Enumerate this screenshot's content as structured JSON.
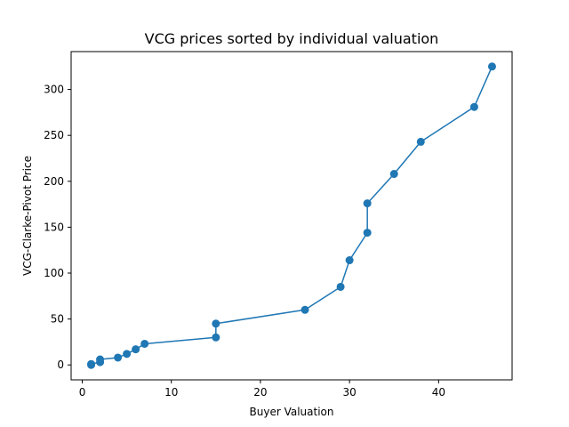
{
  "chart_data": {
    "type": "line",
    "title": "VCG prices sorted by individual valuation",
    "xlabel": "Buyer Valuation",
    "ylabel": "VCG-Clarke-Pivot Price",
    "xlim": [
      -1.25,
      48.25
    ],
    "ylim": [
      -16.25,
      341.25
    ],
    "xticks": [
      0,
      10,
      20,
      30,
      40
    ],
    "yticks": [
      0,
      50,
      100,
      150,
      200,
      250,
      300
    ],
    "grid": false,
    "color": "#1f77b4",
    "marker": "circle",
    "points": [
      {
        "x": 1,
        "y": 0
      },
      {
        "x": 1,
        "y": 1
      },
      {
        "x": 2,
        "y": 3
      },
      {
        "x": 2,
        "y": 6
      },
      {
        "x": 4,
        "y": 8
      },
      {
        "x": 5,
        "y": 12
      },
      {
        "x": 6,
        "y": 17
      },
      {
        "x": 7,
        "y": 23
      },
      {
        "x": 15,
        "y": 30
      },
      {
        "x": 15,
        "y": 45
      },
      {
        "x": 25,
        "y": 60
      },
      {
        "x": 29,
        "y": 85
      },
      {
        "x": 30,
        "y": 114
      },
      {
        "x": 32,
        "y": 144
      },
      {
        "x": 32,
        "y": 176
      },
      {
        "x": 35,
        "y": 208
      },
      {
        "x": 38,
        "y": 243
      },
      {
        "x": 44,
        "y": 281
      },
      {
        "x": 46,
        "y": 325
      }
    ]
  }
}
